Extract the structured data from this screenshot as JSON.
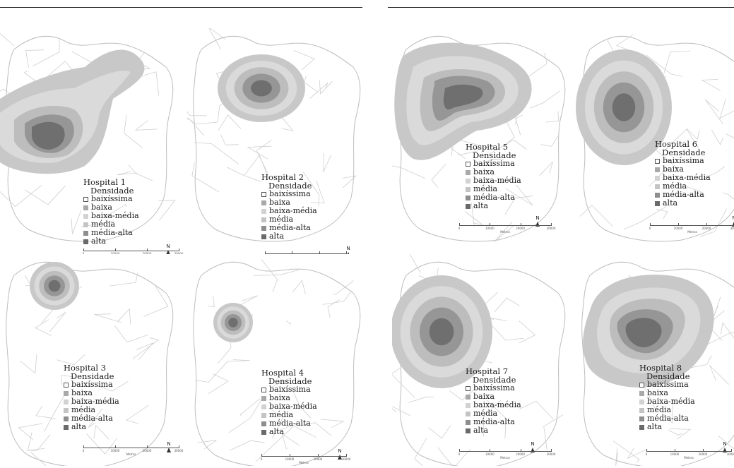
{
  "legend_heading": "Densidade",
  "density_classes": [
    {
      "label": "baixíssima",
      "color": "#ffffff"
    },
    {
      "label": "baixa",
      "color": "#a9a9a9"
    },
    {
      "label": "baixa-média",
      "color": "#d2d2d2"
    },
    {
      "label": "média",
      "color": "#c4c4c4"
    },
    {
      "label": "média-alta",
      "color": "#8e8e8e"
    },
    {
      "label": "alta",
      "color": "#6a6a6a"
    }
  ],
  "north_label": "N",
  "scale_ticks": [
    "0",
    "10000",
    "20000",
    "30000"
  ],
  "scale_unit": "Metros",
  "hospitals": [
    {
      "title": "Hospital 1"
    },
    {
      "title": "Hospital 2"
    },
    {
      "title": "Hospital 3"
    },
    {
      "title": "Hospital 4"
    },
    {
      "title": "Hospital 5"
    },
    {
      "title": "Hospital 6"
    },
    {
      "title": "Hospital 7"
    },
    {
      "title": "Hospital 8"
    }
  ]
}
